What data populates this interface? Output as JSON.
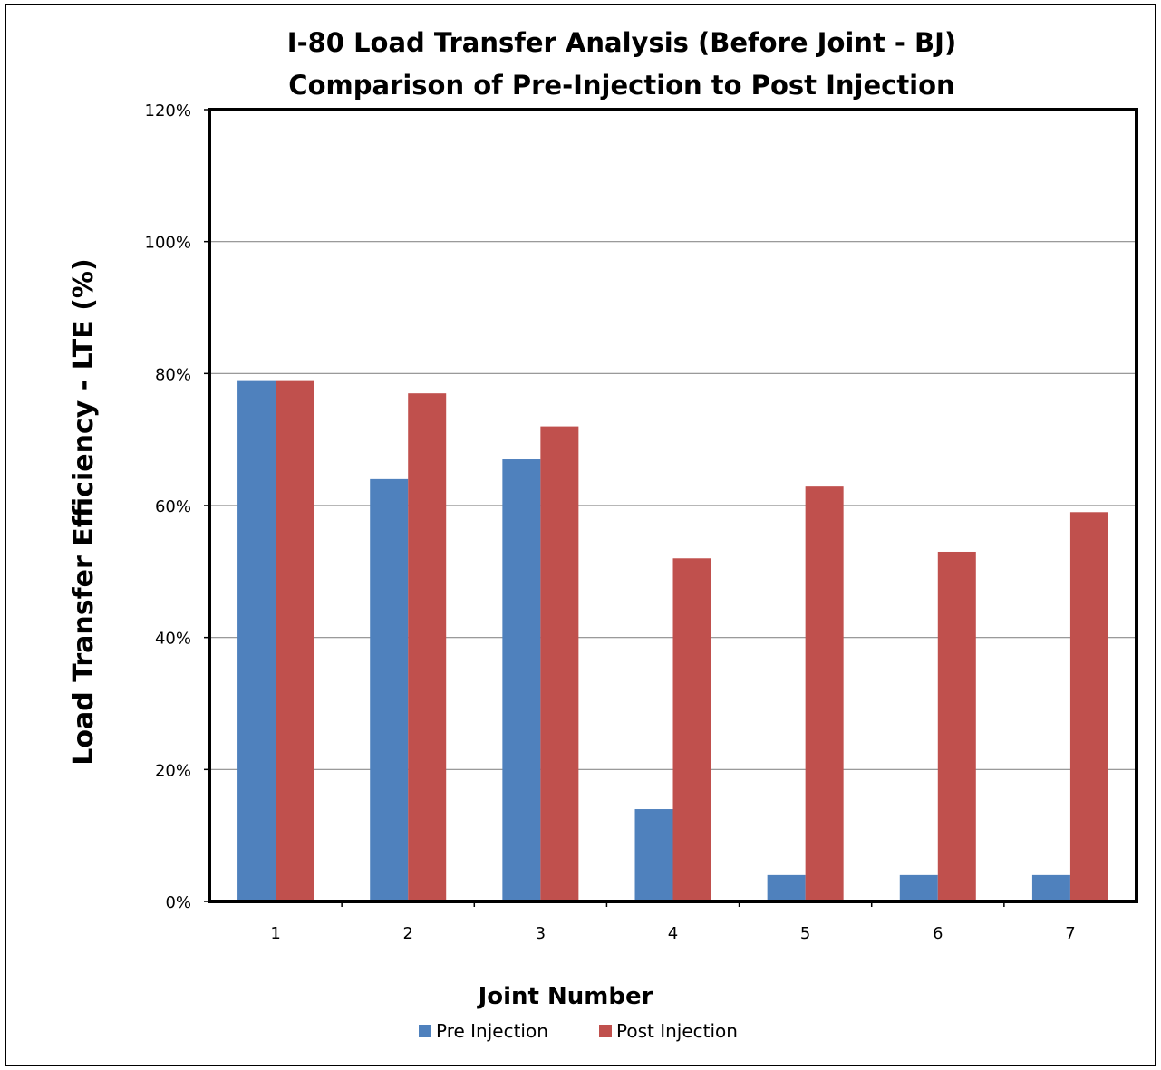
{
  "chart_data": {
    "type": "bar",
    "title": "I-80 Load Transfer Analysis (Before Joint - BJ)",
    "subtitle": "Comparison of Pre-Injection to Post Injection",
    "xlabel": "Joint Number",
    "ylabel": "Load Transfer Efficiency - LTE (%)",
    "categories": [
      "1",
      "2",
      "3",
      "4",
      "5",
      "6",
      "7"
    ],
    "ylim": [
      0,
      1.2
    ],
    "yticks": [
      "0%",
      "20%",
      "40%",
      "60%",
      "80%",
      "100%",
      "120%"
    ],
    "grid": true,
    "legend_position": "bottom",
    "series": [
      {
        "name": "Pre Injection",
        "color": "#4F81BD",
        "values": [
          0.79,
          0.64,
          0.67,
          0.14,
          0.04,
          0.04,
          0.04
        ]
      },
      {
        "name": "Post Injection",
        "color": "#C0504D",
        "values": [
          0.79,
          0.77,
          0.72,
          0.52,
          0.63,
          0.53,
          0.59
        ]
      }
    ]
  }
}
